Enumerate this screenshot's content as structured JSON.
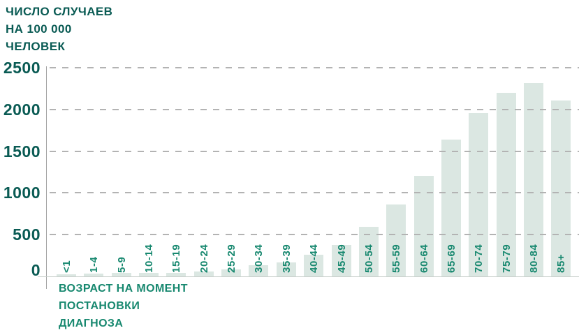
{
  "chart_data": {
    "type": "bar",
    "title": "ЧИСЛО СЛУЧАЕВ НА 100 000 ЧЕЛОВЕК",
    "title_lines": [
      "ЧИСЛО СЛУЧАЕВ",
      "НА 100 000",
      "ЧЕЛОВЕК"
    ],
    "xlabel": "ВОЗРАСТ НА МОМЕНТ ПОСТАНОВКИ ДИАГНОЗА",
    "xlabel_lines": [
      "ВОЗРАСТ НА МОМЕНТ",
      "ПОСТАНОВКИ",
      "ДИАГНОЗА"
    ],
    "ylabel": "ЧИСЛО СЛУЧАЕВ НА 100 000 ЧЕЛОВЕК",
    "categories": [
      "<1",
      "1-4",
      "5-9",
      "10-14",
      "15-19",
      "20-24",
      "25-29",
      "30-34",
      "35-39",
      "40-44",
      "45-49",
      "50-54",
      "55-59",
      "60-64",
      "65-69",
      "70-74",
      "75-79",
      "80-84",
      "85+"
    ],
    "values": [
      25,
      35,
      40,
      40,
      45,
      60,
      80,
      135,
      170,
      260,
      380,
      590,
      860,
      1200,
      1640,
      1960,
      2200,
      2320,
      2110
    ],
    "y_ticks": [
      0,
      500,
      1000,
      1500,
      2000,
      2500
    ],
    "ylim": [
      0,
      2500
    ],
    "grid": "horizontal-dashed",
    "legend": "none",
    "colors": {
      "bar_fill": "#dbe7e2",
      "title_text": "#0a5b54",
      "category_text": "#17886f",
      "gridline": "#b3b3b3",
      "axis_line": "#a2a2a2"
    }
  }
}
